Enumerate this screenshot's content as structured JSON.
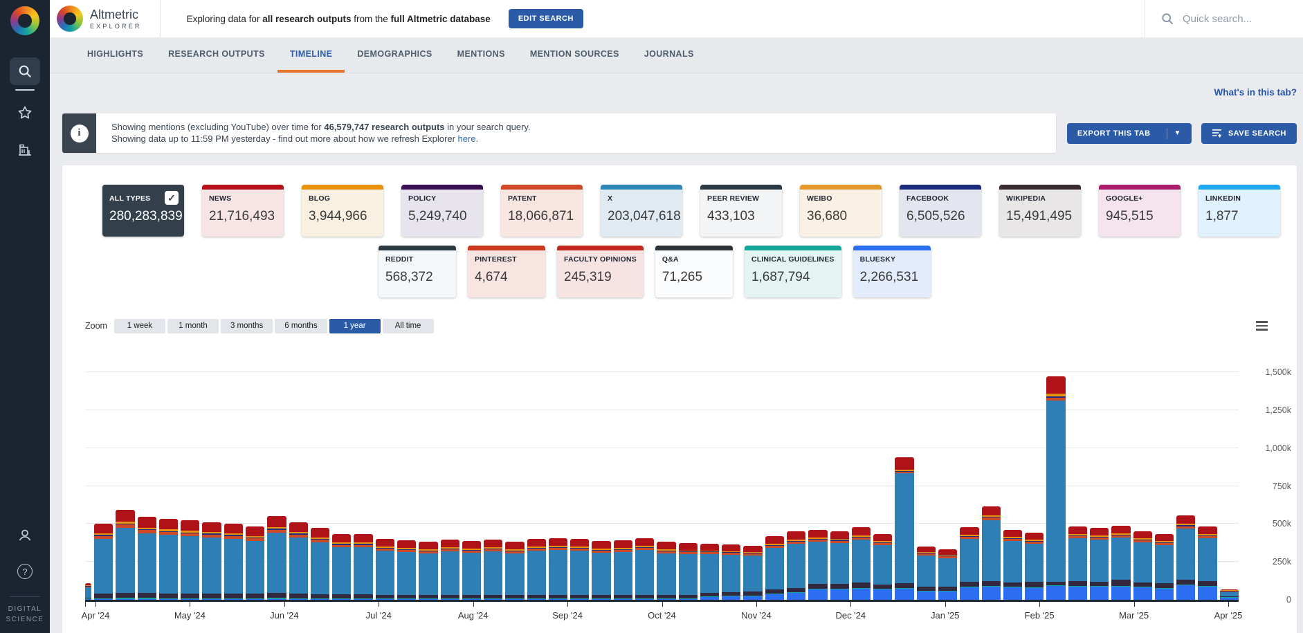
{
  "sidebar": {
    "footer_line1": "DIGITAL",
    "footer_line2": "SCIENCE",
    "icons": [
      "search",
      "star",
      "institution",
      "person",
      "help"
    ]
  },
  "header": {
    "logo_title": "Altmetric",
    "logo_subtitle": "EXPLORER",
    "exploring_prefix": "Exploring data for ",
    "exploring_bold1": "all research outputs",
    "exploring_mid": " from the ",
    "exploring_bold2": "full Altmetric database",
    "edit_search_label": "EDIT SEARCH",
    "quick_search_placeholder": "Quick search..."
  },
  "tabs": [
    {
      "label": "HIGHLIGHTS",
      "active": false
    },
    {
      "label": "RESEARCH OUTPUTS",
      "active": false
    },
    {
      "label": "TIMELINE",
      "active": true
    },
    {
      "label": "DEMOGRAPHICS",
      "active": false
    },
    {
      "label": "MENTIONS",
      "active": false
    },
    {
      "label": "MENTION SOURCES",
      "active": false
    },
    {
      "label": "JOURNALS",
      "active": false
    }
  ],
  "whats_in_tab": "What's in this tab?",
  "banner": {
    "line1_prefix": "Showing mentions (excluding YouTube) over time for ",
    "line1_bold": "46,579,747 research outputs",
    "line1_suffix": " in your search query.",
    "line2_prefix": "Showing data up to 11:59 PM yesterday - find out more about how we refresh Explorer ",
    "line2_link": "here",
    "line2_suffix": "."
  },
  "actions": {
    "export_label": "EXPORT THIS TAB",
    "save_label": "SAVE SEARCH"
  },
  "cards_row1": [
    {
      "label": "ALL TYPES",
      "value": "280,283,839",
      "top": "#33404c",
      "body": "#33404c",
      "dark": true,
      "checked": true
    },
    {
      "label": "NEWS",
      "value": "21,716,493",
      "top": "#b5121b",
      "body": "#f7e4e4"
    },
    {
      "label": "BLOG",
      "value": "3,944,966",
      "top": "#e8920d",
      "body": "#faf0e1"
    },
    {
      "label": "POLICY",
      "value": "5,249,740",
      "top": "#3b1053",
      "body": "#e8e4ee"
    },
    {
      "label": "PATENT",
      "value": "18,066,871",
      "top": "#d04a27",
      "body": "#f8e6e0"
    },
    {
      "label": "X",
      "value": "203,047,618",
      "top": "#2e87b5",
      "body": "#dfeaf3"
    },
    {
      "label": "PEER REVIEW",
      "value": "433,103",
      "top": "#2b3944",
      "body": "#f2f4f5"
    },
    {
      "label": "WEIBO",
      "value": "36,680",
      "top": "#e3992e",
      "body": "#faf0e3"
    },
    {
      "label": "FACEBOOK",
      "value": "6,505,526",
      "top": "#1b2d7a",
      "body": "#e3e5ef"
    },
    {
      "label": "WIKIPEDIA",
      "value": "15,491,495",
      "top": "#3a2b33",
      "body": "#e8e6e7"
    },
    {
      "label": "GOOGLE+",
      "value": "945,515",
      "top": "#a91d6a",
      "body": "#f5e4ed"
    },
    {
      "label": "LINKEDIN",
      "value": "1,877",
      "top": "#1fa8f0",
      "body": "#e0f2fd"
    }
  ],
  "cards_row2": [
    {
      "label": "REDDIT",
      "value": "568,372",
      "top": "#2b3a42",
      "body": "#f5f8fa"
    },
    {
      "label": "PINTEREST",
      "value": "4,674",
      "top": "#cc3a1d",
      "body": "#f8e5e1"
    },
    {
      "label": "FACULTY OPINIONS",
      "value": "245,319",
      "top": "#c0281e",
      "body": "#f8e3e3"
    },
    {
      "label": "Q&A",
      "value": "71,265",
      "top": "#2b3338",
      "body": "#fbfcfd"
    },
    {
      "label": "CLINICAL GUIDELINES",
      "value": "1,687,794",
      "top": "#16a596",
      "body": "#e3f4f2"
    },
    {
      "label": "BLUESKY",
      "value": "2,266,531",
      "top": "#2c6ef2",
      "body": "#e2ecfd"
    }
  ],
  "zoom_controls": {
    "label": "Zoom",
    "options": [
      {
        "label": "1 week",
        "active": false
      },
      {
        "label": "1 month",
        "active": false
      },
      {
        "label": "3 months",
        "active": false
      },
      {
        "label": "6 months",
        "active": false
      },
      {
        "label": "1 year",
        "active": true
      },
      {
        "label": "All time",
        "active": false
      }
    ]
  },
  "chart_data": {
    "type": "bar",
    "stacked": true,
    "title": "Mentions (excluding YouTube) over time, weekly",
    "xlabel": "",
    "ylabel": "",
    "x_labels": [
      "Apr '24",
      "May '24",
      "Jun '24",
      "Jul '24",
      "Aug '24",
      "Sep '24",
      "Oct '24",
      "Nov '24",
      "Dec '24",
      "Jan '25",
      "Feb '25",
      "Mar '25",
      "Apr '25"
    ],
    "y_tick_labels": [
      "0",
      "250k",
      "500k",
      "750k",
      "1,000k",
      "1,250k",
      "1,500k"
    ],
    "ylim_thousands": [
      0,
      1500
    ],
    "grid": true,
    "legend_position": "none",
    "series": [
      {
        "name": "Bluesky",
        "color": "#2c6ef2"
      },
      {
        "name": "Clinical guidelines",
        "color": "#12a5a0"
      },
      {
        "name": "Wikipedia",
        "color": "#33293f"
      },
      {
        "name": "X",
        "color": "#2e7fb5"
      },
      {
        "name": "Patent",
        "color": "#cc4a28"
      },
      {
        "name": "Facebook",
        "color": "#1f2f7d"
      },
      {
        "name": "Blog",
        "color": "#e8920d"
      },
      {
        "name": "News",
        "color": "#b01317"
      }
    ],
    "bars_stacked_thousands": [
      [
        2,
        1,
        6,
        66,
        4,
        1,
        3,
        17
      ],
      [
        2,
        6,
        30,
        363,
        18,
        6,
        10,
        65
      ],
      [
        2,
        7,
        35,
        429,
        21,
        7,
        12,
        77
      ],
      [
        2,
        7,
        33,
        395,
        19,
        7,
        11,
        71
      ],
      [
        2,
        6,
        32,
        385,
        19,
        6,
        11,
        69
      ],
      [
        2,
        6,
        31,
        379,
        18,
        6,
        10,
        68
      ],
      [
        2,
        6,
        31,
        371,
        18,
        6,
        10,
        66
      ],
      [
        2,
        6,
        30,
        363,
        18,
        6,
        10,
        65
      ],
      [
        2,
        6,
        29,
        348,
        17,
        6,
        10,
        62
      ],
      [
        2,
        7,
        33,
        399,
        19,
        7,
        11,
        72
      ],
      [
        2,
        6,
        31,
        371,
        18,
        6,
        10,
        66
      ],
      [
        2,
        6,
        28,
        342,
        16,
        6,
        9,
        61
      ],
      [
        2,
        5,
        26,
        312,
        15,
        5,
        9,
        56
      ],
      [
        2,
        5,
        26,
        312,
        15,
        5,
        9,
        56
      ],
      [
        2,
        5,
        24,
        290,
        14,
        5,
        8,
        52
      ],
      [
        2,
        5,
        23,
        282,
        14,
        5,
        8,
        51
      ],
      [
        2,
        5,
        23,
        275,
        13,
        5,
        8,
        49
      ],
      [
        2,
        5,
        24,
        286,
        14,
        5,
        8,
        51
      ],
      [
        2,
        5,
        23,
        279,
        13,
        5,
        8,
        50
      ],
      [
        2,
        5,
        24,
        286,
        14,
        5,
        8,
        51
      ],
      [
        2,
        5,
        23,
        275,
        13,
        5,
        8,
        49
      ],
      [
        2,
        5,
        24,
        290,
        14,
        5,
        8,
        52
      ],
      [
        2,
        5,
        24,
        294,
        14,
        5,
        8,
        53
      ],
      [
        2,
        5,
        24,
        290,
        14,
        5,
        8,
        52
      ],
      [
        2,
        5,
        23,
        279,
        13,
        5,
        8,
        50
      ],
      [
        2,
        5,
        23,
        282,
        14,
        5,
        8,
        51
      ],
      [
        2,
        5,
        24,
        294,
        14,
        5,
        8,
        53
      ],
      [
        2,
        5,
        23,
        275,
        13,
        5,
        8,
        49
      ],
      [
        2,
        4,
        22,
        270,
        13,
        4,
        7,
        48
      ],
      [
        18,
        2,
        24,
        254,
        12,
        4,
        7,
        44
      ],
      [
        22,
        2,
        24,
        246,
        12,
        4,
        7,
        43
      ],
      [
        25,
        2,
        24,
        238,
        12,
        4,
        7,
        43
      ],
      [
        35,
        2,
        28,
        273,
        14,
        5,
        8,
        50
      ],
      [
        45,
        2,
        30,
        290,
        15,
        5,
        9,
        54
      ],
      [
        70,
        2,
        32,
        278,
        14,
        5,
        9,
        50
      ],
      [
        70,
        2,
        31,
        270,
        14,
        5,
        9,
        49
      ],
      [
        75,
        2,
        33,
        284,
        15,
        5,
        9,
        52
      ],
      [
        68,
        2,
        30,
        258,
        13,
        4,
        8,
        47
      ],
      [
        75,
        2,
        28,
        726,
        10,
        6,
        8,
        80
      ],
      [
        55,
        2,
        26,
        207,
        11,
        4,
        7,
        38
      ],
      [
        55,
        2,
        25,
        191,
        10,
        4,
        7,
        36
      ],
      [
        80,
        2,
        32,
        283,
        14,
        5,
        9,
        50
      ],
      [
        85,
        2,
        33,
        404,
        14,
        6,
        9,
        62
      ],
      [
        80,
        2,
        31,
        272,
        13,
        5,
        9,
        48
      ],
      [
        78,
        2,
        38,
        250,
        13,
        5,
        8,
        46
      ],
      [
        90,
        2,
        25,
        1194,
        18,
        8,
        18,
        115
      ],
      [
        85,
        2,
        32,
        283,
        14,
        5,
        9,
        50
      ],
      [
        85,
        2,
        31,
        276,
        13,
        5,
        9,
        49
      ],
      [
        88,
        2,
        40,
        277,
        14,
        5,
        9,
        50
      ],
      [
        80,
        2,
        30,
        265,
        13,
        5,
        8,
        47
      ],
      [
        75,
        2,
        29,
        254,
        12,
        5,
        8,
        45
      ],
      [
        95,
        2,
        33,
        338,
        15,
        6,
        9,
        57
      ],
      [
        85,
        2,
        32,
        283,
        14,
        5,
        9,
        50
      ],
      [
        12,
        1,
        4,
        28,
        2,
        1,
        2,
        5
      ]
    ]
  }
}
